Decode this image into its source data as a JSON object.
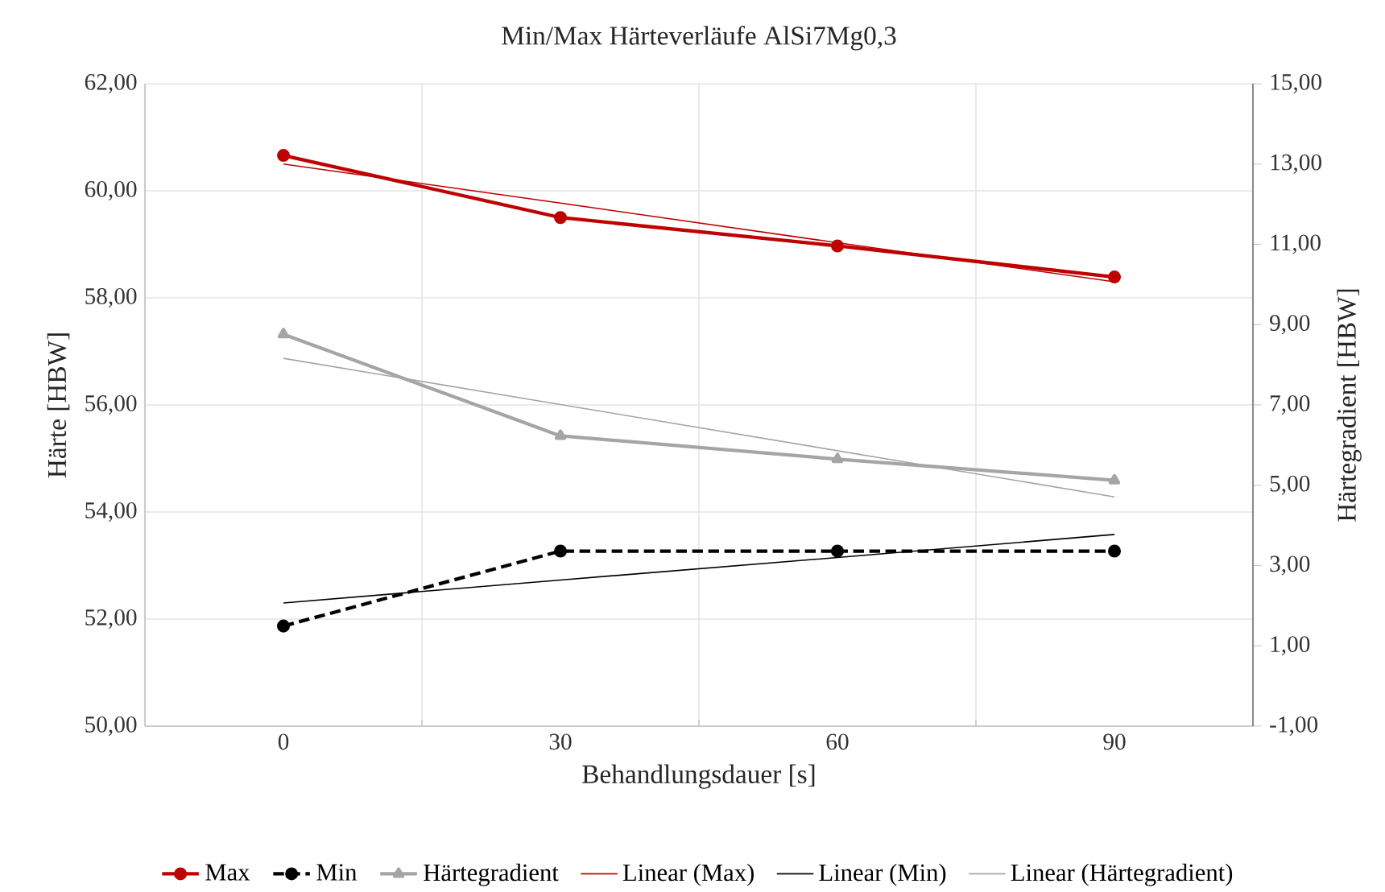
{
  "chart_data": {
    "type": "line",
    "title": "Min/Max Härteverläufe AlSi7Mg0,3",
    "xlabel": "Behandlungsdauer [s]",
    "ylabel": "Härte [HBW]",
    "y2label": "Härtegradient [HBW]",
    "categories": [
      "0",
      "30",
      "60",
      "90"
    ],
    "ylim": [
      50,
      62
    ],
    "yticks": [
      {
        "value": 50,
        "label": "50,00"
      },
      {
        "value": 52,
        "label": "52,00"
      },
      {
        "value": 54,
        "label": "54,00"
      },
      {
        "value": 56,
        "label": "56,00"
      },
      {
        "value": 58,
        "label": "58,00"
      },
      {
        "value": 60,
        "label": "60,00"
      },
      {
        "value": 62,
        "label": "62,00"
      }
    ],
    "y2lim": [
      -1,
      15
    ],
    "y2ticks": [
      {
        "value": -1,
        "label": "-1,00"
      },
      {
        "value": 1,
        "label": "1,00"
      },
      {
        "value": 3,
        "label": "3,00"
      },
      {
        "value": 5,
        "label": "5,00"
      },
      {
        "value": 7,
        "label": "7,00"
      },
      {
        "value": 9,
        "label": "9,00"
      },
      {
        "value": 11,
        "label": "11,00"
      },
      {
        "value": 13,
        "label": "13,00"
      },
      {
        "value": 15,
        "label": "15,00"
      }
    ],
    "grid": true,
    "legend": "bottom",
    "series": [
      {
        "name": "Max",
        "color": "#c00000",
        "values": [
          60.66,
          59.5,
          58.97,
          58.39
        ],
        "marker": "circle",
        "line_style": "solid"
      },
      {
        "name": "Min",
        "color": "#000000",
        "values": [
          51.87,
          53.27,
          53.27,
          53.27
        ],
        "marker": "circle",
        "line_style": "dashed"
      },
      {
        "name": "Härtegradient",
        "color": "#a5a5a5",
        "values": [
          8.76,
          6.23,
          5.65,
          5.12
        ],
        "marker": "triangle",
        "line_style": "solid",
        "axis": "y2"
      },
      {
        "name": "Linear (Max)",
        "color": "#c00000",
        "values": [
          60.5,
          59.77,
          59.03,
          58.3
        ],
        "marker": "none",
        "line_style": "solid"
      },
      {
        "name": "Linear (Min)",
        "color": "#000000",
        "values": [
          52.3,
          52.73,
          53.15,
          53.58
        ],
        "marker": "none",
        "line_style": "solid"
      },
      {
        "name": "Linear (Härtegradient)",
        "color": "#a5a5a5",
        "values": [
          8.16,
          7.01,
          5.86,
          4.71
        ],
        "marker": "none",
        "line_style": "solid",
        "axis": "y2"
      }
    ]
  }
}
